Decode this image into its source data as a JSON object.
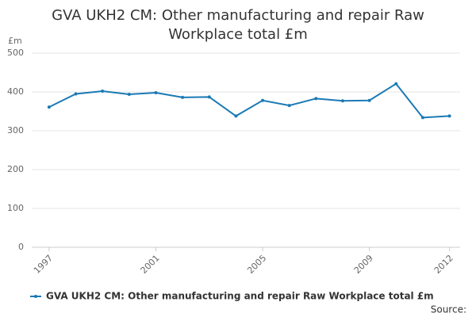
{
  "chart_data": {
    "type": "line",
    "title": "GVA UKH2 CM: Other manufacturing and repair Raw Workplace total £m",
    "y_unit": "£m",
    "source": "Source:",
    "x": [
      1997,
      1998,
      1999,
      2000,
      2001,
      2002,
      2003,
      2004,
      2005,
      2006,
      2007,
      2008,
      2009,
      2010,
      2011,
      2012
    ],
    "series": [
      {
        "name": "GVA UKH2 CM: Other manufacturing and repair Raw Workplace total £m",
        "color": "#1a7ab5",
        "values": [
          361,
          395,
          402,
          394,
          398,
          386,
          387,
          338,
          378,
          365,
          383,
          377,
          378,
          421,
          334,
          338
        ]
      }
    ],
    "xlim": [
      1996.35,
      2012.4
    ],
    "xticks": [
      1997,
      2001,
      2005,
      2009,
      2012
    ],
    "ylim": [
      0,
      500
    ],
    "yticks": [
      0,
      100,
      200,
      300,
      400,
      500
    ],
    "grid": true
  }
}
